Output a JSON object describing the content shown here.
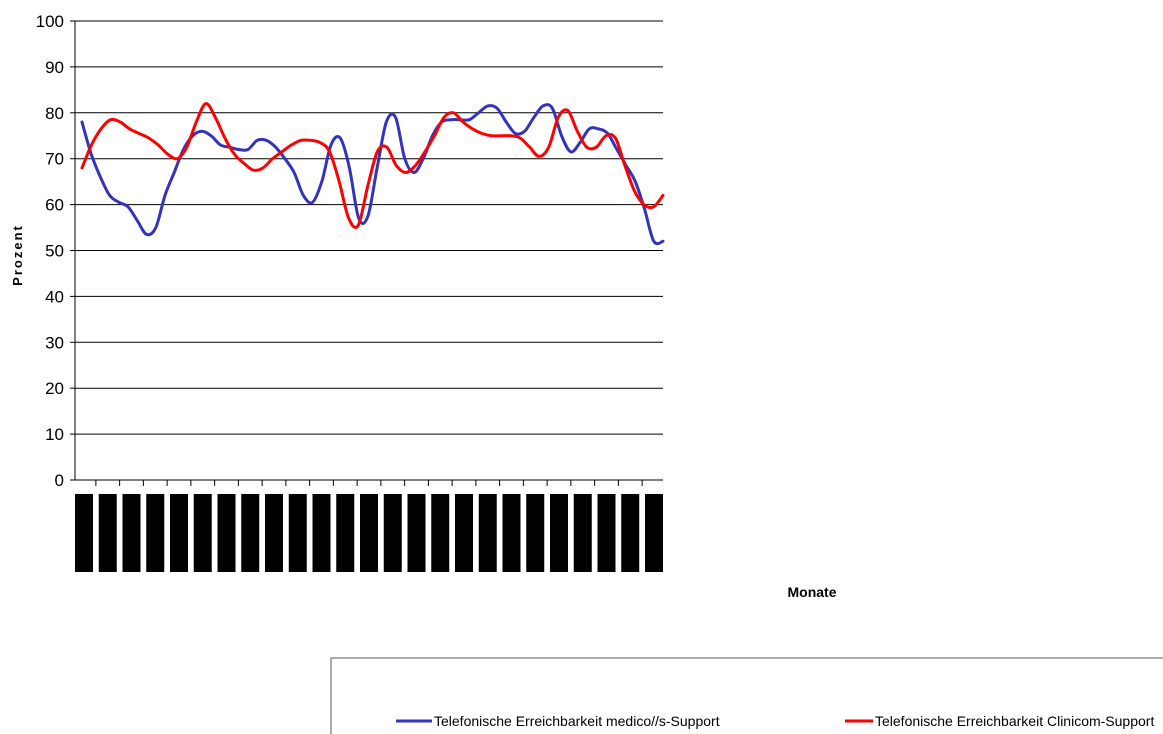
{
  "chart_data": {
    "type": "line",
    "xlabel": "Monate",
    "ylabel": "Prozent",
    "ylim": [
      0,
      100
    ],
    "yticks": [
      0,
      10,
      20,
      30,
      40,
      50,
      60,
      70,
      80,
      90,
      100
    ],
    "grid": true,
    "legend_position": "bottom",
    "x_tick_labels_note": "redacted (solid black bars)",
    "series": [
      {
        "name": "Telefonische Erreichbarkeit medico//s-Support",
        "color": "#3333bb",
        "values": [
          78,
          71,
          66,
          62,
          60.5,
          59.5,
          56.5,
          53.5,
          55,
          62,
          67,
          72,
          75,
          76,
          75,
          73,
          72.5,
          72,
          72,
          74,
          74,
          72.5,
          70,
          67,
          62,
          60.5,
          65,
          73,
          74.5,
          68,
          57,
          57.5,
          68,
          78,
          79,
          70,
          67,
          70,
          75,
          78,
          78.5,
          78.5,
          78.5,
          80,
          81.5,
          81,
          78,
          75.5,
          76,
          79,
          81.5,
          81,
          75,
          71.5,
          73.5,
          76.5,
          76.5,
          75.5,
          72,
          68.5,
          65,
          59,
          52,
          52
        ]
      },
      {
        "name": "Telefonische Erreichbarkeit Clinicom-Support",
        "color": "#ff0000",
        "values": [
          68,
          73,
          76.5,
          78.5,
          78,
          76.5,
          75.5,
          74.5,
          73,
          71,
          70,
          72.5,
          78,
          82,
          79,
          74.5,
          71,
          69,
          67.5,
          68,
          70,
          71.5,
          73,
          74,
          74,
          73.5,
          71.5,
          65,
          57,
          55.5,
          64,
          71.5,
          72.5,
          68.5,
          67,
          68.5,
          71.5,
          75,
          79,
          80,
          78,
          76.5,
          75.5,
          75,
          75,
          75,
          74.5,
          72.5,
          70.5,
          72.5,
          79,
          80.5,
          76,
          72.5,
          72.5,
          75,
          74.5,
          68.5,
          63,
          60,
          59.5,
          62
        ]
      }
    ]
  }
}
